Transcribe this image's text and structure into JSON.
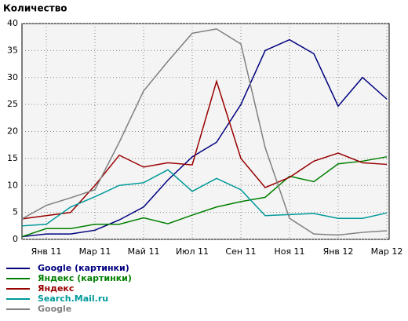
{
  "chart_data": {
    "type": "line",
    "ylabel": "Количество",
    "categories": [
      null,
      "Янв 11",
      null,
      "Мар 11",
      null,
      "Май 11",
      null,
      "Июл 11",
      null,
      "Сен 11",
      null,
      "Ноя 11",
      null,
      "Янв 12",
      null,
      "Мар 12"
    ],
    "ylim": [
      0,
      40
    ],
    "yticks": [
      0,
      5,
      10,
      15,
      20,
      25,
      30,
      35,
      40
    ],
    "grid": true,
    "series": [
      {
        "name": "Google (картинки)",
        "color": "#00007f",
        "values": [
          0.5,
          1,
          1,
          1.7,
          3.6,
          6,
          11,
          15.3,
          18,
          25,
          35,
          37,
          34.4,
          24.7,
          30,
          26
        ]
      },
      {
        "name": "Яндекс (картинки)",
        "color": "#008000",
        "values": [
          0.5,
          2,
          2,
          2.8,
          2.8,
          4,
          2.9,
          4.5,
          6,
          7,
          7.8,
          11.7,
          10.7,
          14,
          14.5,
          15.3
        ]
      },
      {
        "name": "Яндекс",
        "color": "#990000",
        "values": [
          3.8,
          4.4,
          5,
          10,
          15.6,
          13.4,
          14.2,
          13.8,
          29.3,
          15,
          9.6,
          11.5,
          14.5,
          16,
          14.2,
          13.9
        ]
      },
      {
        "name": "Search.Mail.ru",
        "color": "#009999",
        "values": [
          2.5,
          2.8,
          6,
          7.9,
          10,
          10.5,
          12.9,
          8.9,
          11.3,
          9.2,
          4.4,
          4.6,
          4.8,
          3.9,
          3.9,
          4.9
        ]
      },
      {
        "name": "Google",
        "color": "#808080",
        "values": [
          3.8,
          6.3,
          7.7,
          9.2,
          18,
          27.5,
          33,
          38.2,
          39,
          36.2,
          17,
          3.9,
          1,
          0.8,
          1.3,
          1.6
        ]
      }
    ]
  }
}
